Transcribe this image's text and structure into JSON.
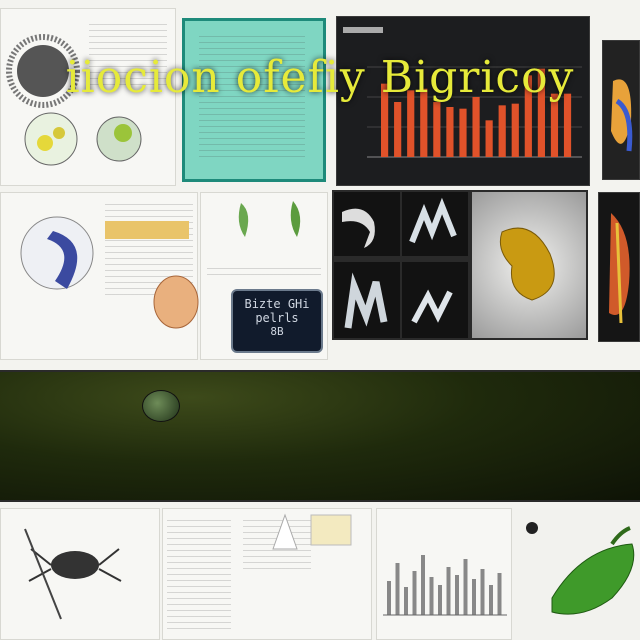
{
  "banner": {
    "title": "iiocion ofefiy Bigricoy"
  },
  "label_box": {
    "line1": "Bizte GHi",
    "line2": "pelrls",
    "line3": "8B"
  },
  "colors": {
    "banner_text": "#e6ea3a",
    "bar_fill": "#e0522a",
    "teal_panel": "#7fd6c2",
    "banner_bg": "#1f2a0c"
  },
  "chart_data": {
    "type": "bar",
    "values": [
      44,
      33,
      40,
      41,
      33,
      30,
      29,
      36,
      22,
      31,
      32,
      49,
      53,
      38,
      38
    ],
    "ylim": [
      0,
      60
    ]
  },
  "icons": [
    "sea-urchin-icon",
    "microscope-cell-icon",
    "cartilage-icon",
    "gold-nugget-icon",
    "bone-fragment-icon",
    "coral-icon",
    "leaf-icon",
    "spider-icon",
    "green-pepper-icon"
  ]
}
